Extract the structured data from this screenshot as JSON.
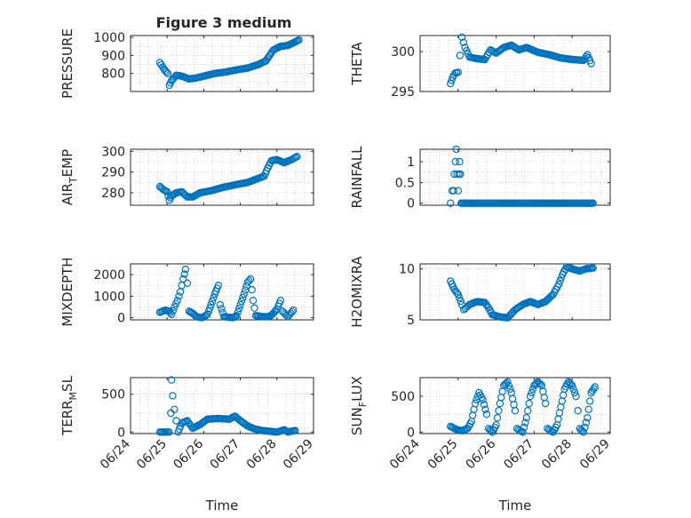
{
  "figure": {
    "title": "Figure 3 medium",
    "xlabel": "Time",
    "xticklabels": [
      "06/24",
      "06/25",
      "06/26",
      "06/27",
      "06/28",
      "06/29"
    ],
    "marker_color": "#0072BD"
  },
  "chart_data": [
    {
      "type": "scatter",
      "id": "pressure",
      "ylabel": "PRESSURE",
      "ylabel_sub": "",
      "ylim": [
        700,
        1010
      ],
      "yticks": [
        800,
        900,
        1000
      ],
      "x_range": [
        "06/24",
        "06/29"
      ],
      "grid": true,
      "keypoints": [
        [
          24.8,
          860
        ],
        [
          24.88,
          835
        ],
        [
          24.95,
          815
        ],
        [
          25.02,
          800
        ],
        [
          25.06,
          735
        ],
        [
          25.12,
          760
        ],
        [
          25.25,
          790
        ],
        [
          25.4,
          785
        ],
        [
          25.6,
          770
        ],
        [
          25.8,
          775
        ],
        [
          26.0,
          785
        ],
        [
          26.3,
          800
        ],
        [
          26.6,
          808
        ],
        [
          26.9,
          820
        ],
        [
          27.2,
          830
        ],
        [
          27.5,
          850
        ],
        [
          27.7,
          870
        ],
        [
          27.8,
          900
        ],
        [
          27.9,
          930
        ],
        [
          28.1,
          950
        ],
        [
          28.3,
          955
        ],
        [
          28.5,
          975
        ],
        [
          28.6,
          985
        ]
      ]
    },
    {
      "type": "scatter",
      "id": "theta",
      "ylabel": "THETA",
      "ylabel_sub": "",
      "ylim": [
        295,
        302
      ],
      "yticks": [
        295,
        300
      ],
      "x_range": [
        "06/24",
        "06/29"
      ],
      "grid": true,
      "keypoints": [
        [
          24.8,
          296.0
        ],
        [
          24.86,
          296.8
        ],
        [
          24.92,
          297.3
        ],
        [
          25.0,
          297.4
        ],
        [
          25.05,
          299.5
        ],
        [
          25.1,
          301.8
        ],
        [
          25.18,
          300.5
        ],
        [
          25.3,
          299.3
        ],
        [
          25.5,
          299.1
        ],
        [
          25.7,
          299.0
        ],
        [
          25.85,
          300.2
        ],
        [
          26.0,
          299.8
        ],
        [
          26.2,
          300.5
        ],
        [
          26.4,
          300.8
        ],
        [
          26.6,
          300.2
        ],
        [
          26.8,
          300.5
        ],
        [
          27.1,
          299.9
        ],
        [
          27.4,
          299.6
        ],
        [
          27.7,
          299.2
        ],
        [
          28.0,
          299.0
        ],
        [
          28.3,
          298.9
        ],
        [
          28.4,
          299.6
        ],
        [
          28.5,
          298.5
        ]
      ]
    },
    {
      "type": "scatter",
      "id": "air_temp",
      "ylabel": "AIR",
      "ylabel_sub": "T",
      "ylabel_suffix": "EMP",
      "ylim": [
        274,
        301
      ],
      "yticks": [
        280,
        290,
        300
      ],
      "x_range": [
        "06/24",
        "06/29"
      ],
      "grid": true,
      "keypoints": [
        [
          24.8,
          283.0
        ],
        [
          24.9,
          281.5
        ],
        [
          25.0,
          280.5
        ],
        [
          25.06,
          276.5
        ],
        [
          25.12,
          278.5
        ],
        [
          25.25,
          280.0
        ],
        [
          25.4,
          280.5
        ],
        [
          25.55,
          278.0
        ],
        [
          25.7,
          278.0
        ],
        [
          25.9,
          280.0
        ],
        [
          26.2,
          281.0
        ],
        [
          26.5,
          282.5
        ],
        [
          26.9,
          284.0
        ],
        [
          27.2,
          285.0
        ],
        [
          27.5,
          287.0
        ],
        [
          27.65,
          288.0
        ],
        [
          27.75,
          292.0
        ],
        [
          27.85,
          295.5
        ],
        [
          28.0,
          296.0
        ],
        [
          28.2,
          294.5
        ],
        [
          28.4,
          296.0
        ],
        [
          28.55,
          297.5
        ]
      ]
    },
    {
      "type": "scatter",
      "id": "rainfall",
      "ylabel": "RAINFALL",
      "ylabel_sub": "",
      "ylim": [
        -0.05,
        1.3
      ],
      "yticks": [
        0,
        0.5,
        1
      ],
      "x_range": [
        "06/24",
        "06/29"
      ],
      "grid": true,
      "points": [
        [
          24.8,
          0.0
        ],
        [
          24.84,
          0.3
        ],
        [
          24.88,
          0.3
        ],
        [
          24.9,
          0.7
        ],
        [
          24.93,
          1.0
        ],
        [
          24.95,
          1.3
        ],
        [
          24.97,
          0.7
        ],
        [
          25.0,
          0.3
        ],
        [
          25.02,
          0.7
        ],
        [
          25.04,
          1.0
        ],
        [
          25.06,
          0.7
        ],
        [
          25.08,
          0.0
        ]
      ],
      "zero_line": [
        25.1,
        28.55
      ]
    },
    {
      "type": "scatter",
      "id": "mixdepth",
      "ylabel": "MIXDEPTH",
      "ylabel_sub": "",
      "ylim": [
        -100,
        2500
      ],
      "yticks": [
        0,
        1000,
        2000
      ],
      "x_range": [
        "06/24",
        "06/29"
      ],
      "grid": true,
      "keypoints": [
        [
          24.8,
          250
        ],
        [
          24.95,
          350
        ],
        [
          25.05,
          300
        ],
        [
          25.12,
          150
        ],
        [
          25.2,
          500
        ],
        [
          25.28,
          800
        ],
        [
          25.36,
          1200
        ],
        [
          25.44,
          1800
        ],
        [
          25.5,
          2250
        ],
        [
          25.55,
          1600
        ],
        [
          25.6,
          300
        ],
        [
          25.7,
          200
        ],
        [
          25.8,
          50
        ],
        [
          25.95,
          0
        ],
        [
          26.1,
          150
        ],
        [
          26.2,
          600
        ],
        [
          26.3,
          1100
        ],
        [
          26.4,
          1500
        ],
        [
          26.45,
          600
        ],
        [
          26.55,
          50
        ],
        [
          26.8,
          0
        ],
        [
          26.9,
          100
        ],
        [
          27.0,
          600
        ],
        [
          27.1,
          1100
        ],
        [
          27.2,
          1650
        ],
        [
          27.28,
          1800
        ],
        [
          27.35,
          800
        ],
        [
          27.42,
          100
        ],
        [
          27.6,
          50
        ],
        [
          27.8,
          50
        ],
        [
          27.9,
          200
        ],
        [
          28.0,
          400
        ],
        [
          28.1,
          800
        ],
        [
          28.15,
          300
        ],
        [
          28.3,
          50
        ],
        [
          28.45,
          350
        ]
      ]
    },
    {
      "type": "scatter",
      "id": "h2omixra",
      "ylabel": "H2OMIXRA",
      "ylabel_sub": "",
      "ylim": [
        5,
        10.5
      ],
      "yticks": [
        5,
        10
      ],
      "x_range": [
        "06/24",
        "06/29"
      ],
      "grid": true,
      "keypoints": [
        [
          24.8,
          8.8
        ],
        [
          24.9,
          8.0
        ],
        [
          25.0,
          7.5
        ],
        [
          25.1,
          6.5
        ],
        [
          25.15,
          6.0
        ],
        [
          25.3,
          6.5
        ],
        [
          25.5,
          6.8
        ],
        [
          25.7,
          6.7
        ],
        [
          25.8,
          6.2
        ],
        [
          25.9,
          5.5
        ],
        [
          26.1,
          5.3
        ],
        [
          26.3,
          5.2
        ],
        [
          26.5,
          6.0
        ],
        [
          26.7,
          6.5
        ],
        [
          26.9,
          6.8
        ],
        [
          27.1,
          6.5
        ],
        [
          27.3,
          6.8
        ],
        [
          27.5,
          7.5
        ],
        [
          27.65,
          8.5
        ],
        [
          27.75,
          9.5
        ],
        [
          27.85,
          10.2
        ],
        [
          28.0,
          10.0
        ],
        [
          28.2,
          9.8
        ],
        [
          28.35,
          10.0
        ],
        [
          28.55,
          10.1
        ]
      ]
    },
    {
      "type": "scatter",
      "id": "terr_msl",
      "ylabel": "TERR",
      "ylabel_sub": "M",
      "ylabel_suffix": "SL",
      "ylim": [
        -20,
        720
      ],
      "yticks": [
        0,
        500
      ],
      "x_range": [
        "06/24",
        "06/29"
      ],
      "grid": true,
      "keypoints": [
        [
          24.8,
          0
        ],
        [
          25.05,
          0
        ],
        [
          25.1,
          250
        ],
        [
          25.12,
          690
        ],
        [
          25.15,
          480
        ],
        [
          25.2,
          300
        ],
        [
          25.25,
          150
        ],
        [
          25.3,
          0
        ],
        [
          25.4,
          120
        ],
        [
          25.55,
          150
        ],
        [
          25.7,
          50
        ],
        [
          25.9,
          100
        ],
        [
          26.1,
          170
        ],
        [
          26.4,
          180
        ],
        [
          26.7,
          170
        ],
        [
          26.85,
          210
        ],
        [
          27.0,
          150
        ],
        [
          27.2,
          80
        ],
        [
          27.4,
          40
        ],
        [
          27.6,
          20
        ],
        [
          27.8,
          10
        ],
        [
          28.0,
          0
        ],
        [
          28.2,
          30
        ],
        [
          28.3,
          0
        ],
        [
          28.5,
          20
        ]
      ]
    },
    {
      "type": "scatter",
      "id": "sunflux",
      "ylabel": "SUN",
      "ylabel_sub": "F",
      "ylabel_suffix": "LUX",
      "ylim": [
        -20,
        760
      ],
      "yticks": [
        0,
        500
      ],
      "x_range": [
        "06/24",
        "06/29"
      ],
      "grid": true,
      "keypoints": [
        [
          24.8,
          80
        ],
        [
          24.9,
          50
        ],
        [
          25.0,
          30
        ],
        [
          25.1,
          20
        ],
        [
          25.25,
          50
        ],
        [
          25.35,
          150
        ],
        [
          25.45,
          400
        ],
        [
          25.55,
          550
        ],
        [
          25.65,
          450
        ],
        [
          25.75,
          250
        ],
        [
          25.8,
          50
        ],
        [
          25.9,
          0
        ],
        [
          26.0,
          100
        ],
        [
          26.1,
          400
        ],
        [
          26.2,
          650
        ],
        [
          26.3,
          700
        ],
        [
          26.4,
          550
        ],
        [
          26.5,
          300
        ],
        [
          26.55,
          50
        ],
        [
          26.7,
          0
        ],
        [
          26.8,
          200
        ],
        [
          26.9,
          500
        ],
        [
          27.0,
          650
        ],
        [
          27.1,
          700
        ],
        [
          27.2,
          650
        ],
        [
          27.3,
          400
        ],
        [
          27.35,
          50
        ],
        [
          27.5,
          0
        ],
        [
          27.6,
          100
        ],
        [
          27.7,
          350
        ],
        [
          27.8,
          600
        ],
        [
          27.9,
          700
        ],
        [
          28.0,
          650
        ],
        [
          28.1,
          500
        ],
        [
          28.15,
          300
        ],
        [
          28.2,
          50
        ],
        [
          28.3,
          0
        ],
        [
          28.4,
          200
        ],
        [
          28.5,
          550
        ],
        [
          28.6,
          630
        ]
      ]
    }
  ]
}
